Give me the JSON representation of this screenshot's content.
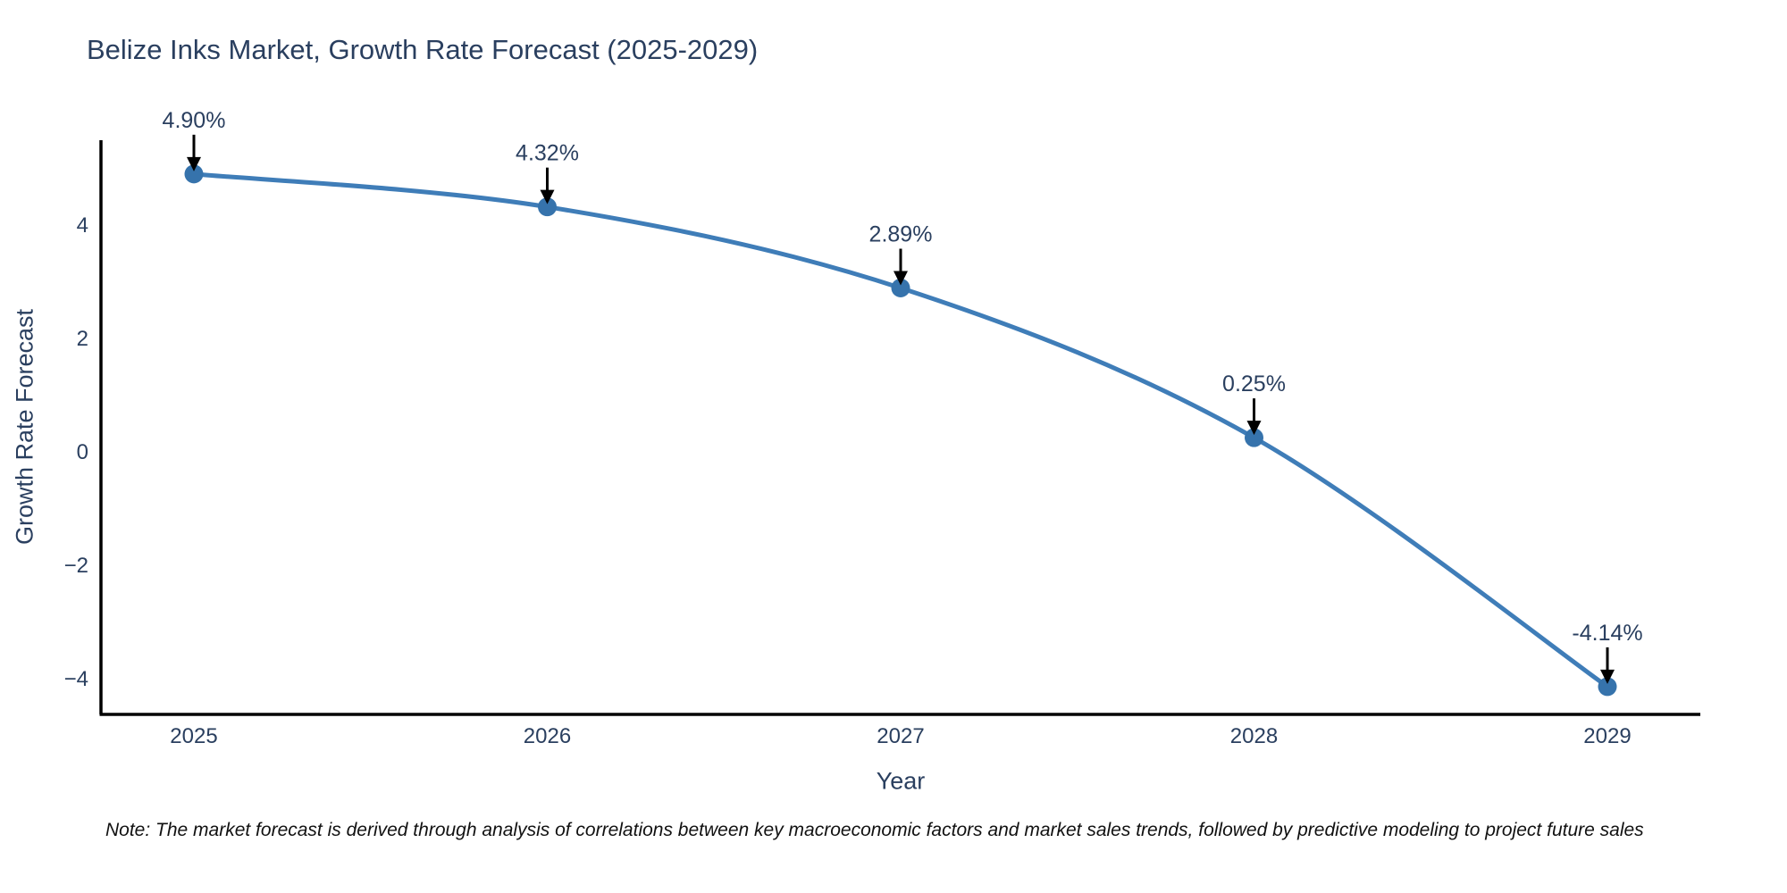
{
  "title": "Belize Inks Market, Growth Rate Forecast (2025-2029)",
  "note": "Note: The market forecast is derived through analysis of correlations between key macroeconomic factors and market sales trends, followed by predictive modeling to project future sales",
  "chart_data": {
    "type": "line",
    "title": "Belize Inks Market, Growth Rate Forecast (2025-2029)",
    "x": [
      "2025",
      "2026",
      "2027",
      "2028",
      "2029"
    ],
    "values": [
      4.9,
      4.32,
      2.89,
      0.25,
      -4.14
    ],
    "point_labels": [
      "4.90%",
      "4.32%",
      "2.89%",
      "0.25%",
      "-4.14%"
    ],
    "xlabel": "Year",
    "ylabel": "Growth Rate Forecast",
    "yticks": [
      4,
      2,
      0,
      -2,
      -4
    ],
    "ylim": [
      -4.6,
      5.5
    ],
    "grid": false,
    "legend": "none",
    "line_color": "#3f7db8",
    "marker_color": "#3673ac",
    "axis_color": "#000000",
    "tick_label_color": "#2a3f5f",
    "annotation_text_color": "#2a3f5f",
    "annotation_arrow_color": "#000000"
  }
}
